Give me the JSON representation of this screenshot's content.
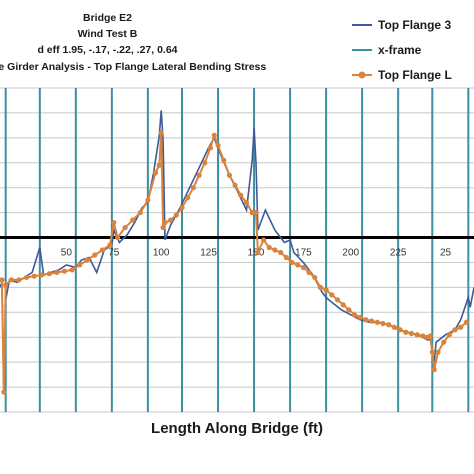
{
  "chart_data": {
    "type": "line",
    "title_lines": [
      "Bridge E2",
      "Wind Test B",
      "d eff 1.95, -.17, -.22, .27, 0.64",
      "ne Girder Analysis - Top Flange Lateral Bending Stress"
    ],
    "xlabel": "Length Along Bridge (ft)",
    "ylabel": "",
    "x_ticks": [
      "50",
      "75",
      "100",
      "125",
      "150",
      "175",
      "200",
      "225",
      "25"
    ],
    "xlim": [
      15,
      265
    ],
    "ylim": [
      -7,
      6
    ],
    "legend": {
      "position": "top-right",
      "entries": [
        "Top Flange 3",
        "x-frame",
        "Top Flange L"
      ]
    },
    "xframe_positions": [
      18,
      36,
      55,
      74,
      93,
      111,
      130,
      149,
      168,
      187,
      206,
      225,
      243,
      262
    ],
    "series": [
      {
        "name": "Top Flange 3",
        "color": "#3d5a99",
        "points": [
          [
            15,
            -2
          ],
          [
            16,
            -1.8
          ],
          [
            17,
            -6
          ],
          [
            18,
            -2.5
          ],
          [
            20,
            -1.7
          ],
          [
            24,
            -1.8
          ],
          [
            28,
            -1.6
          ],
          [
            32,
            -1.4
          ],
          [
            36,
            -0.4
          ],
          [
            38,
            -1.5
          ],
          [
            42,
            -1.4
          ],
          [
            46,
            -1.3
          ],
          [
            50,
            -1.1
          ],
          [
            55,
            -1.2
          ],
          [
            58,
            -0.9
          ],
          [
            62,
            -0.8
          ],
          [
            66,
            -1.4
          ],
          [
            70,
            -0.5
          ],
          [
            74,
            -0.3
          ],
          [
            75,
            0.3
          ],
          [
            78,
            -0.2
          ],
          [
            82,
            0.1
          ],
          [
            86,
            0.6
          ],
          [
            90,
            1.2
          ],
          [
            93,
            1.4
          ],
          [
            96,
            2.6
          ],
          [
            99,
            4.1
          ],
          [
            100,
            5.1
          ],
          [
            101,
            3.9
          ],
          [
            102,
            -0.1
          ],
          [
            105,
            0.5
          ],
          [
            110,
            1.2
          ],
          [
            115,
            2.0
          ],
          [
            120,
            2.8
          ],
          [
            125,
            3.6
          ],
          [
            128,
            4.0
          ],
          [
            131,
            3.4
          ],
          [
            136,
            2.5
          ],
          [
            140,
            1.9
          ],
          [
            145,
            1.1
          ],
          [
            148,
            3.1
          ],
          [
            149,
            4.4
          ],
          [
            150,
            3.0
          ],
          [
            151,
            0.3
          ],
          [
            155,
            1.1
          ],
          [
            160,
            0.3
          ],
          [
            165,
            -0.2
          ],
          [
            168,
            -0.1
          ],
          [
            170,
            -0.6
          ],
          [
            175,
            -1.0
          ],
          [
            180,
            -1.5
          ],
          [
            185,
            -2.2
          ],
          [
            187,
            -2.4
          ],
          [
            190,
            -2.6
          ],
          [
            195,
            -2.9
          ],
          [
            200,
            -3.1
          ],
          [
            205,
            -3.3
          ],
          [
            210,
            -3.4
          ],
          [
            215,
            -3.4
          ],
          [
            220,
            -3.5
          ],
          [
            225,
            -3.7
          ],
          [
            230,
            -3.8
          ],
          [
            235,
            -3.9
          ],
          [
            238,
            -4.0
          ],
          [
            240,
            -4.1
          ],
          [
            242,
            -4.1
          ],
          [
            243,
            -4.6
          ],
          [
            244,
            -5.0
          ],
          [
            245,
            -4.2
          ],
          [
            250,
            -3.9
          ],
          [
            255,
            -3.7
          ],
          [
            258,
            -3.3
          ],
          [
            262,
            -2.4
          ],
          [
            263,
            -2.8
          ],
          [
            265,
            -2.0
          ]
        ]
      },
      {
        "name": "Top Flange L",
        "color": "#d9833b",
        "points": [
          [
            16,
            -1.7
          ],
          [
            17,
            -6.2
          ],
          [
            18,
            -1.9
          ],
          [
            21,
            -1.7
          ],
          [
            25,
            -1.7
          ],
          [
            29,
            -1.6
          ],
          [
            33,
            -1.55
          ],
          [
            37,
            -1.5
          ],
          [
            41,
            -1.45
          ],
          [
            45,
            -1.4
          ],
          [
            49,
            -1.35
          ],
          [
            53,
            -1.3
          ],
          [
            57,
            -1.1
          ],
          [
            61,
            -0.9
          ],
          [
            65,
            -0.7
          ],
          [
            69,
            -0.5
          ],
          [
            73,
            -0.3
          ],
          [
            75,
            0.6
          ],
          [
            77,
            0.0
          ],
          [
            81,
            0.4
          ],
          [
            85,
            0.7
          ],
          [
            89,
            1.0
          ],
          [
            93,
            1.5
          ],
          [
            97,
            2.6
          ],
          [
            99,
            2.9
          ],
          [
            100,
            4.2
          ],
          [
            101,
            0.4
          ],
          [
            102,
            0.6
          ],
          [
            105,
            0.7
          ],
          [
            108,
            0.9
          ],
          [
            111,
            1.2
          ],
          [
            114,
            1.6
          ],
          [
            117,
            2.0
          ],
          [
            120,
            2.5
          ],
          [
            123,
            3.0
          ],
          [
            126,
            3.6
          ],
          [
            128,
            4.1
          ],
          [
            130,
            3.7
          ],
          [
            133,
            3.1
          ],
          [
            136,
            2.5
          ],
          [
            139,
            2.1
          ],
          [
            142,
            1.7
          ],
          [
            145,
            1.4
          ],
          [
            148,
            1.0
          ],
          [
            150,
            1.0
          ],
          [
            151,
            -0.6
          ],
          [
            154,
            -0.1
          ],
          [
            157,
            -0.4
          ],
          [
            160,
            -0.5
          ],
          [
            163,
            -0.6
          ],
          [
            166,
            -0.8
          ],
          [
            169,
            -1.0
          ],
          [
            172,
            -1.1
          ],
          [
            175,
            -1.2
          ],
          [
            178,
            -1.4
          ],
          [
            181,
            -1.6
          ],
          [
            184,
            -2.0
          ],
          [
            187,
            -2.1
          ],
          [
            190,
            -2.3
          ],
          [
            193,
            -2.5
          ],
          [
            196,
            -2.7
          ],
          [
            199,
            -2.9
          ],
          [
            202,
            -3.1
          ],
          [
            205,
            -3.2
          ],
          [
            208,
            -3.3
          ],
          [
            211,
            -3.35
          ],
          [
            214,
            -3.4
          ],
          [
            217,
            -3.45
          ],
          [
            220,
            -3.5
          ],
          [
            223,
            -3.6
          ],
          [
            226,
            -3.7
          ],
          [
            229,
            -3.8
          ],
          [
            232,
            -3.85
          ],
          [
            235,
            -3.9
          ],
          [
            238,
            -3.95
          ],
          [
            240,
            -4.0
          ],
          [
            242,
            -3.95
          ],
          [
            243,
            -4.6
          ],
          [
            244,
            -5.3
          ],
          [
            246,
            -4.6
          ],
          [
            249,
            -4.2
          ],
          [
            252,
            -3.9
          ],
          [
            255,
            -3.7
          ],
          [
            258,
            -3.6
          ],
          [
            261,
            -3.4
          ]
        ]
      }
    ]
  }
}
